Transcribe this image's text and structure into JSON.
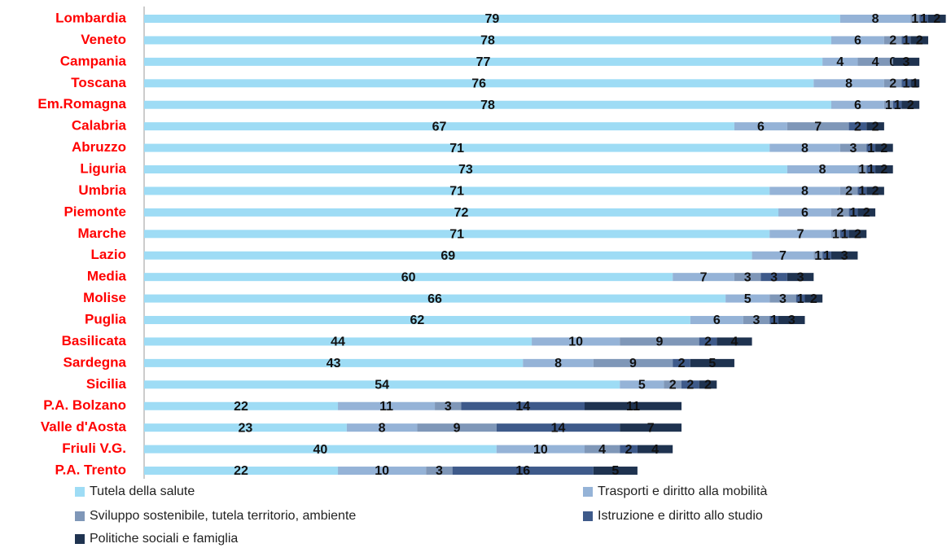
{
  "chart_data": {
    "type": "stacked_bar_horizontal",
    "categories": [
      "Lombardia",
      "Veneto",
      "Campania",
      "Toscana",
      "Em.Romagna",
      "Calabria",
      "Abruzzo",
      "Liguria",
      "Umbria",
      "Piemonte",
      "Marche",
      "Lazio",
      "Media",
      "Molise",
      "Puglia",
      "Basilicata",
      "Sardegna",
      "Sicilia",
      "P.A. Bolzano",
      "Valle d'Aosta",
      "Friuli V.G.",
      "P.A. Trento"
    ],
    "series": [
      {
        "name": "Tutela della salute",
        "color": "#9edcf5",
        "values": [
          79,
          78,
          77,
          76,
          78,
          67,
          71,
          73,
          71,
          72,
          71,
          69,
          60,
          66,
          62,
          44,
          43,
          54,
          22,
          23,
          40,
          22
        ]
      },
      {
        "name": "Trasporti e diritto alla mobilità",
        "color": "#95b3d7",
        "values": [
          8,
          6,
          4,
          8,
          6,
          6,
          8,
          8,
          8,
          6,
          7,
          7,
          7,
          5,
          6,
          10,
          8,
          5,
          11,
          8,
          10,
          10
        ]
      },
      {
        "name": "Sviluppo sostenibile, tutela territorio, ambiente",
        "color": "#7f97b8",
        "values": [
          1,
          2,
          4,
          2,
          1,
          7,
          3,
          1,
          2,
          2,
          1,
          1,
          3,
          3,
          3,
          9,
          9,
          2,
          3,
          9,
          4,
          3
        ]
      },
      {
        "name": "Istruzione e diritto allo studio",
        "color": "#3e5a8a",
        "values": [
          1,
          1,
          0,
          1,
          1,
          2,
          1,
          1,
          1,
          1,
          1,
          1,
          3,
          1,
          1,
          2,
          2,
          2,
          14,
          14,
          2,
          16
        ]
      },
      {
        "name": "Politiche sociali e famiglia",
        "color": "#1f3350",
        "values": [
          2,
          2,
          3,
          1,
          2,
          2,
          2,
          2,
          2,
          2,
          2,
          3,
          3,
          2,
          3,
          4,
          5,
          2,
          11,
          7,
          4,
          5
        ]
      }
    ]
  }
}
